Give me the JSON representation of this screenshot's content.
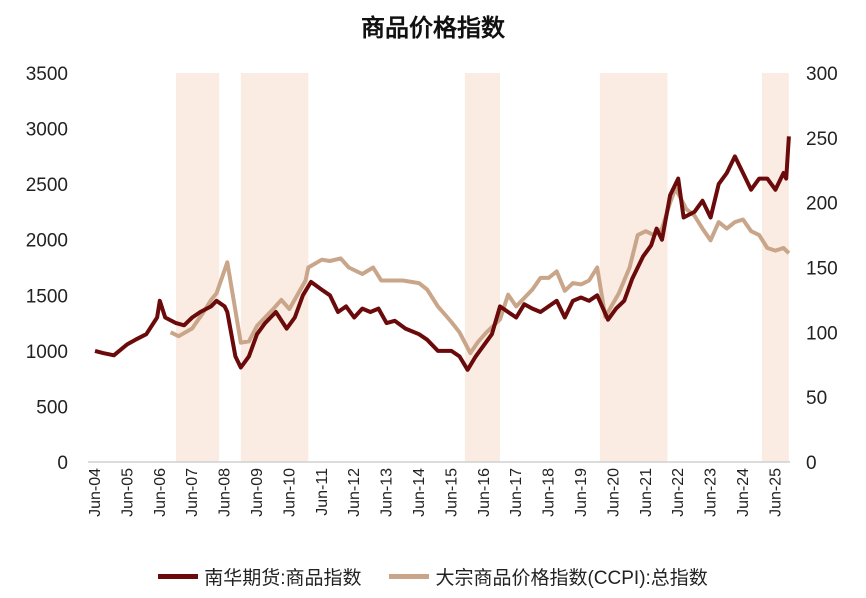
{
  "chart_data": {
    "type": "line",
    "title": "商品价格指数",
    "colors": {
      "nanhua": "#6b0a0a",
      "ccpi": "#c9a68a",
      "shade": "#fbece3"
    },
    "left_axis": {
      "ylim": [
        0,
        3500
      ],
      "ticks": [
        0,
        500,
        1000,
        1500,
        2000,
        2500,
        3000,
        3500
      ]
    },
    "right_axis": {
      "ylim": [
        0,
        300
      ],
      "ticks": [
        0,
        50,
        100,
        150,
        200,
        250,
        300
      ]
    },
    "x_ticks": [
      "Jun-04",
      "Jun-05",
      "Jun-06",
      "Jun-07",
      "Jun-08",
      "Jun-09",
      "Jun-10",
      "Jun-11",
      "Jun-12",
      "Jun-13",
      "Jun-14",
      "Jun-15",
      "Jun-16",
      "Jun-17",
      "Jun-18",
      "Jun-19",
      "Jun-20",
      "Jun-21",
      "Jun-22",
      "Jun-23",
      "Jun-24",
      "Jun-25"
    ],
    "grid": false,
    "legend_position": "bottom",
    "shaded_periods": [
      [
        "2006-12",
        "2008-04"
      ],
      [
        "2008-12",
        "2011-01"
      ],
      [
        "2015-11",
        "2016-12"
      ],
      [
        "2020-01",
        "2022-02"
      ],
      [
        "2025-01",
        "2025-11"
      ]
    ],
    "series": [
      {
        "name": "南华期货:商品指数",
        "axis": "left",
        "points": [
          [
            "2004-06",
            1000
          ],
          [
            "2004-09",
            980
          ],
          [
            "2005-01",
            960
          ],
          [
            "2005-06",
            1060
          ],
          [
            "2005-09",
            1100
          ],
          [
            "2006-01",
            1150
          ],
          [
            "2006-05",
            1300
          ],
          [
            "2006-06",
            1450
          ],
          [
            "2006-08",
            1300
          ],
          [
            "2006-12",
            1250
          ],
          [
            "2007-03",
            1230
          ],
          [
            "2007-06",
            1300
          ],
          [
            "2007-09",
            1350
          ],
          [
            "2008-01",
            1400
          ],
          [
            "2008-03",
            1450
          ],
          [
            "2008-06",
            1400
          ],
          [
            "2008-07",
            1350
          ],
          [
            "2008-10",
            950
          ],
          [
            "2008-12",
            850
          ],
          [
            "2009-03",
            950
          ],
          [
            "2009-06",
            1150
          ],
          [
            "2009-09",
            1250
          ],
          [
            "2010-01",
            1350
          ],
          [
            "2010-05",
            1200
          ],
          [
            "2010-08",
            1300
          ],
          [
            "2010-11",
            1500
          ],
          [
            "2011-02",
            1620
          ],
          [
            "2011-06",
            1550
          ],
          [
            "2011-09",
            1500
          ],
          [
            "2011-12",
            1350
          ],
          [
            "2012-03",
            1400
          ],
          [
            "2012-06",
            1300
          ],
          [
            "2012-09",
            1380
          ],
          [
            "2012-12",
            1350
          ],
          [
            "2013-03",
            1380
          ],
          [
            "2013-06",
            1250
          ],
          [
            "2013-09",
            1270
          ],
          [
            "2014-01",
            1200
          ],
          [
            "2014-06",
            1150
          ],
          [
            "2014-09",
            1100
          ],
          [
            "2015-01",
            1000
          ],
          [
            "2015-06",
            1000
          ],
          [
            "2015-09",
            950
          ],
          [
            "2015-12",
            830
          ],
          [
            "2016-03",
            950
          ],
          [
            "2016-06",
            1050
          ],
          [
            "2016-09",
            1150
          ],
          [
            "2016-12",
            1400
          ],
          [
            "2017-03",
            1350
          ],
          [
            "2017-06",
            1300
          ],
          [
            "2017-09",
            1420
          ],
          [
            "2017-12",
            1380
          ],
          [
            "2018-03",
            1350
          ],
          [
            "2018-06",
            1400
          ],
          [
            "2018-09",
            1450
          ],
          [
            "2018-12",
            1300
          ],
          [
            "2019-03",
            1450
          ],
          [
            "2019-06",
            1480
          ],
          [
            "2019-09",
            1450
          ],
          [
            "2019-12",
            1500
          ],
          [
            "2020-04",
            1280
          ],
          [
            "2020-07",
            1380
          ],
          [
            "2020-10",
            1450
          ],
          [
            "2021-01",
            1650
          ],
          [
            "2021-05",
            1850
          ],
          [
            "2021-08",
            1950
          ],
          [
            "2021-10",
            2100
          ],
          [
            "2021-12",
            2000
          ],
          [
            "2022-03",
            2400
          ],
          [
            "2022-06",
            2550
          ],
          [
            "2022-08",
            2200
          ],
          [
            "2022-12",
            2250
          ],
          [
            "2023-03",
            2350
          ],
          [
            "2023-06",
            2200
          ],
          [
            "2023-09",
            2500
          ],
          [
            "2023-12",
            2600
          ],
          [
            "2024-03",
            2750
          ],
          [
            "2024-06",
            2600
          ],
          [
            "2024-09",
            2450
          ],
          [
            "2024-12",
            2550
          ],
          [
            "2025-03",
            2550
          ],
          [
            "2025-06",
            2450
          ],
          [
            "2025-09",
            2600
          ],
          [
            "2025-10",
            2550
          ],
          [
            "2025-11",
            2930
          ]
        ]
      },
      {
        "name": "大宗商品价格指数(CCPI):总指数",
        "axis": "right",
        "points": [
          [
            "2006-10",
            100
          ],
          [
            "2007-01",
            97
          ],
          [
            "2007-06",
            103
          ],
          [
            "2007-10",
            115
          ],
          [
            "2008-01",
            125
          ],
          [
            "2008-03",
            130
          ],
          [
            "2008-07",
            154
          ],
          [
            "2008-12",
            92
          ],
          [
            "2009-03",
            93
          ],
          [
            "2009-06",
            105
          ],
          [
            "2009-12",
            118
          ],
          [
            "2010-03",
            125
          ],
          [
            "2010-06",
            118
          ],
          [
            "2010-12",
            140
          ],
          [
            "2011-01",
            150
          ],
          [
            "2011-06",
            156
          ],
          [
            "2011-09",
            155
          ],
          [
            "2012-01",
            157
          ],
          [
            "2012-04",
            150
          ],
          [
            "2012-09",
            145
          ],
          [
            "2013-01",
            150
          ],
          [
            "2013-04",
            140
          ],
          [
            "2013-12",
            140
          ],
          [
            "2014-06",
            138
          ],
          [
            "2014-09",
            133
          ],
          [
            "2015-01",
            120
          ],
          [
            "2015-06",
            108
          ],
          [
            "2015-09",
            100
          ],
          [
            "2016-01",
            84
          ],
          [
            "2016-04",
            93
          ],
          [
            "2016-07",
            100
          ],
          [
            "2016-12",
            110
          ],
          [
            "2017-03",
            129
          ],
          [
            "2017-06",
            120
          ],
          [
            "2017-12",
            133
          ],
          [
            "2018-03",
            142
          ],
          [
            "2018-06",
            142
          ],
          [
            "2018-09",
            147
          ],
          [
            "2018-12",
            132
          ],
          [
            "2019-03",
            138
          ],
          [
            "2019-06",
            137
          ],
          [
            "2019-09",
            140
          ],
          [
            "2019-12",
            150
          ],
          [
            "2020-03",
            112
          ],
          [
            "2020-08",
            130
          ],
          [
            "2020-12",
            150
          ],
          [
            "2021-03",
            175
          ],
          [
            "2021-06",
            178
          ],
          [
            "2021-09",
            175
          ],
          [
            "2021-12",
            180
          ],
          [
            "2022-03",
            200
          ],
          [
            "2022-05",
            211
          ],
          [
            "2022-09",
            195
          ],
          [
            "2022-12",
            190
          ],
          [
            "2023-03",
            180
          ],
          [
            "2023-06",
            171
          ],
          [
            "2023-09",
            185
          ],
          [
            "2023-12",
            180
          ],
          [
            "2024-03",
            185
          ],
          [
            "2024-06",
            187
          ],
          [
            "2024-09",
            178
          ],
          [
            "2024-12",
            175
          ],
          [
            "2025-03",
            165
          ],
          [
            "2025-06",
            163
          ],
          [
            "2025-09",
            165
          ],
          [
            "2025-11",
            161
          ]
        ]
      }
    ]
  }
}
